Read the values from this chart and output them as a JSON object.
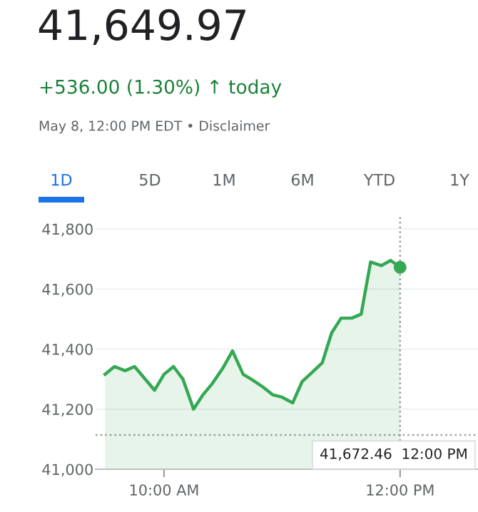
{
  "chart_data": {
    "type": "area",
    "title": "41,649.97",
    "subtitle": "+536.00 (1.30%) ↑ today",
    "annotations": [
      "May 8, 12:00 PM EDT • Disclaimer",
      "1D",
      "5D",
      "1M",
      "6M",
      "YTD",
      "1Y",
      "41,672.46  12:00 PM"
    ],
    "series": [
      {
        "color": "#34a853",
        "x": [
          9.5,
          9.58,
          9.67,
          9.75,
          9.92,
          10.0,
          10.08,
          10.16,
          10.25,
          10.33,
          10.41,
          10.5,
          10.58,
          10.67,
          10.75,
          10.84,
          10.92,
          11.0,
          11.09,
          11.17,
          11.25,
          11.34,
          11.42,
          11.5,
          11.59,
          11.67,
          11.75,
          11.84,
          11.92,
          12.0
        ],
        "values": [
          41316,
          41342,
          41328,
          41342,
          41263,
          41316,
          41342,
          41300,
          41200,
          41248,
          41286,
          41338,
          41394,
          41316,
          41297,
          41273,
          41248,
          41240,
          41221,
          41292,
          41321,
          41354,
          41454,
          41503,
          41503,
          41516,
          41690,
          41678,
          41695,
          41672.46
        ]
      },
      {
        "type": "scatter",
        "color": "#34a853",
        "x": [
          12.0
        ],
        "values": [
          41672.46
        ],
        "marker": "circle"
      }
    ],
    "ref_lines": [
      {
        "axis": "y",
        "value": 41113.97,
        "color": "#9aa0a6",
        "line_style": "dotted"
      },
      {
        "axis": "x",
        "value": 12,
        "color": "#9aa0a6",
        "line_style": "dotted"
      }
    ],
    "xlim": [
      9.42,
      12.66
    ],
    "ylim": [
      41000,
      41850
    ],
    "xticks": [
      {
        "value": 10,
        "label": "10:00 AM"
      },
      {
        "value": 12,
        "label": "12:00 PM"
      }
    ],
    "yticks": [
      {
        "value": 41000,
        "label": "41,000"
      },
      {
        "value": 41200,
        "label": "41,200"
      },
      {
        "value": 41400,
        "label": "41,400"
      },
      {
        "value": 41600,
        "label": "41,600"
      },
      {
        "value": 41800,
        "label": "41,800"
      }
    ],
    "grid": "y",
    "legend": false,
    "marker": "none",
    "line_style": "solid"
  }
}
